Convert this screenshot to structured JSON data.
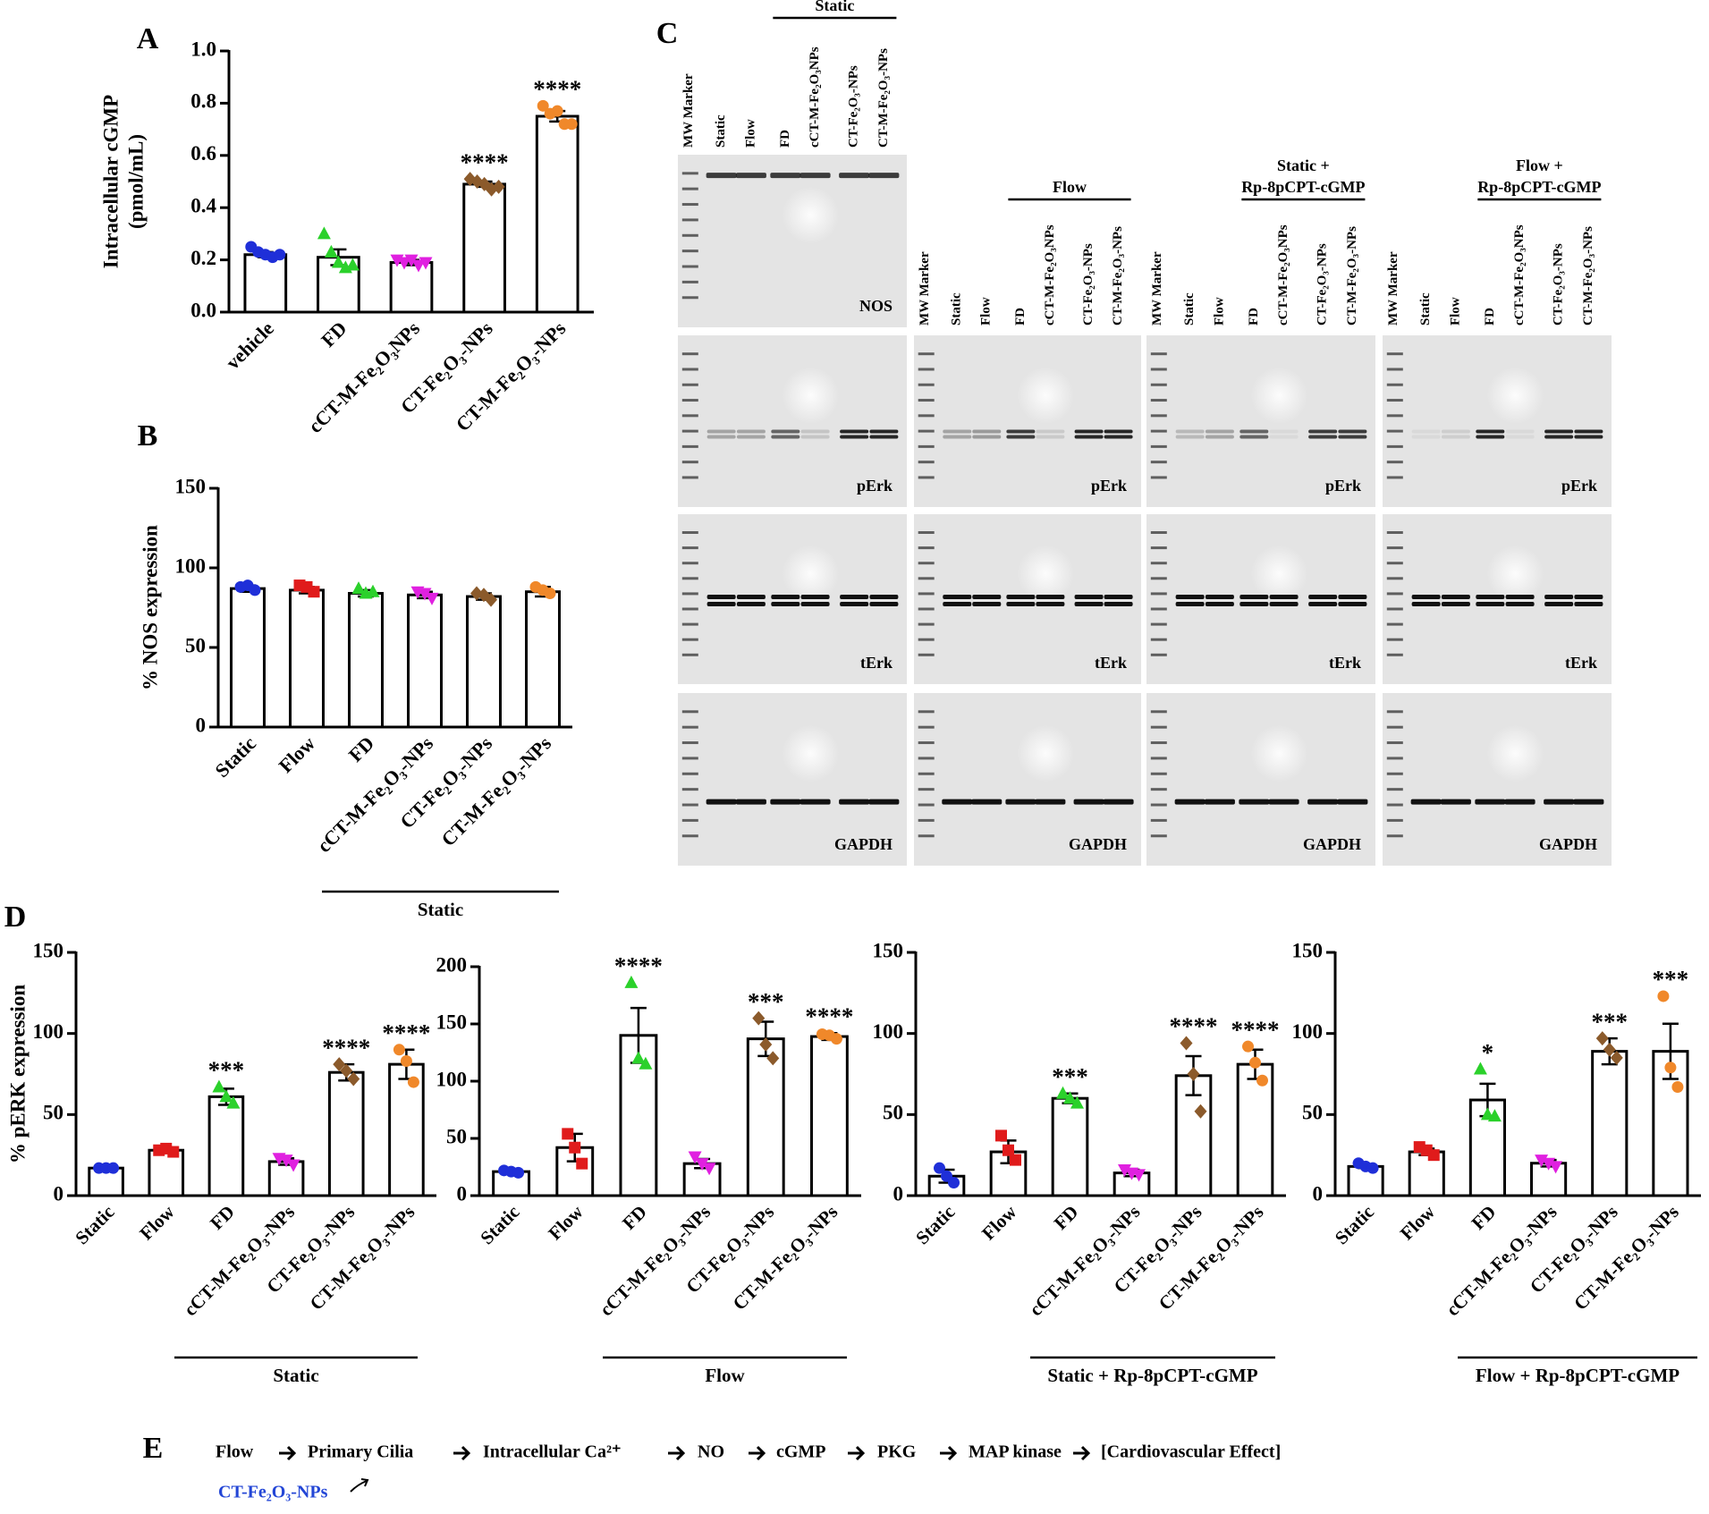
{
  "panel_labels": [
    "A",
    "B",
    "C",
    "D",
    "E"
  ],
  "chart_data": [
    {
      "type": "bar",
      "ylabel": [
        "Intracellular cGMP",
        "(pmol/mL)"
      ],
      "categories": [
        "vehicle",
        "FD",
        "cCT-M-Fe₂O₃NPs",
        "CT-Fe₂O₃-NPs",
        "CT-M-Fe₂O₃-NPs"
      ],
      "values": [
        0.22,
        0.21,
        0.19,
        0.49,
        0.75
      ],
      "errors": [
        0.01,
        0.03,
        0.01,
        0.01,
        0.02
      ],
      "points": [
        [
          0.25,
          0.23,
          0.22,
          0.21,
          0.22
        ],
        [
          0.3,
          0.23,
          0.19,
          0.17,
          0.18
        ],
        [
          0.2,
          0.19,
          0.2,
          0.18,
          0.19
        ],
        [
          0.51,
          0.5,
          0.49,
          0.47,
          0.48
        ],
        [
          0.79,
          0.76,
          0.77,
          0.72,
          0.72
        ]
      ],
      "point_colors": [
        "#1f2fd8",
        "#2bd12b",
        "#e020e0",
        "#8b5a2b",
        "#f0882a"
      ],
      "point_shapes": [
        "circle",
        "triangle",
        "triangle-down",
        "diamond",
        "circle"
      ],
      "annotations": [
        null,
        null,
        null,
        "****",
        "****"
      ],
      "ylim": [
        0,
        1
      ],
      "yticks": [
        {
          "value": 0,
          "label": "0.0"
        },
        0.2,
        0.4,
        0.6,
        0.8,
        {
          "value": 1,
          "label": "1.0"
        }
      ]
    },
    {
      "type": "bar",
      "ylabel": [
        "% NOS expression"
      ],
      "categories": [
        "Static",
        "Flow",
        "FD",
        "cCT-M-Fe₂O₃-NPs",
        "CT-Fe₂O₃-NPs",
        "CT-M-Fe₂O₃-NPs"
      ],
      "values": [
        87,
        86,
        84,
        83,
        82,
        85
      ],
      "errors": [
        2,
        2,
        2,
        2,
        2,
        3
      ],
      "points": [
        [
          88,
          89,
          86
        ],
        [
          89,
          88,
          85
        ],
        [
          87,
          84,
          85
        ],
        [
          85,
          84,
          81
        ],
        [
          84,
          83,
          80
        ],
        [
          88,
          86,
          84
        ]
      ],
      "point_colors": [
        "#1f2fd8",
        "#e01b1b",
        "#2bd12b",
        "#e020e0",
        "#8b5a2b",
        "#f0882a"
      ],
      "point_shapes": [
        "circle",
        "square",
        "triangle",
        "triangle-down",
        "diamond",
        "circle"
      ],
      "group_label": "Static",
      "ylim": [
        0,
        150
      ],
      "yticks": [
        0,
        50,
        100,
        150
      ]
    },
    {
      "type": "bar",
      "ylabel": [
        "% pERK expression"
      ],
      "categories": [
        "Static",
        "Flow",
        "FD",
        "cCT-M-Fe₂O₃-NPs",
        "CT-Fe₂O₃-NPs",
        "CT-M-Fe₂O₃-NPs"
      ],
      "values": [
        17,
        28,
        61,
        21,
        76,
        81
      ],
      "errors": [
        1,
        1,
        5,
        2,
        5,
        9
      ],
      "points": [
        [
          17,
          17,
          17
        ],
        [
          28,
          29,
          27
        ],
        [
          67,
          61,
          57
        ],
        [
          23,
          22,
          19
        ],
        [
          81,
          77,
          72
        ],
        [
          90,
          83,
          70
        ]
      ],
      "point_colors": [
        "#1f2fd8",
        "#e01b1b",
        "#2bd12b",
        "#e020e0",
        "#8b5a2b",
        "#f0882a"
      ],
      "point_shapes": [
        "circle",
        "square",
        "triangle",
        "triangle-down",
        "diamond",
        "circle"
      ],
      "annotations": [
        null,
        null,
        "***",
        null,
        "****",
        "****"
      ],
      "group_label": "Static",
      "ylim": [
        0,
        150
      ],
      "yticks": [
        0,
        50,
        100,
        150
      ]
    },
    {
      "type": "bar",
      "categories": [
        "Static",
        "Flow",
        "FD",
        "cCT-M-Fe₂O₃-NPs",
        "CT-Fe₂O₃-NPs",
        "CT-M-Fe₂O₃-NPs"
      ],
      "values": [
        21,
        42,
        140,
        28,
        137,
        139
      ],
      "errors": [
        2,
        12,
        24,
        4,
        15,
        3
      ],
      "points": [
        [
          22,
          21,
          20
        ],
        [
          54,
          42,
          28
        ],
        [
          186,
          120,
          115
        ],
        [
          34,
          28,
          24
        ],
        [
          155,
          132,
          120
        ],
        [
          141,
          140,
          137
        ]
      ],
      "point_colors": [
        "#1f2fd8",
        "#e01b1b",
        "#2bd12b",
        "#e020e0",
        "#8b5a2b",
        "#f0882a"
      ],
      "point_shapes": [
        "circle",
        "square",
        "triangle",
        "triangle-down",
        "diamond",
        "circle"
      ],
      "annotations": [
        null,
        null,
        "****",
        null,
        "***",
        "****"
      ],
      "group_label": "Flow",
      "ylim": [
        0,
        200
      ],
      "yticks": [
        0,
        50,
        100,
        150,
        200
      ]
    },
    {
      "type": "bar",
      "categories": [
        "Static",
        "Flow",
        "FD",
        "cCT-M-Fe₂O₃-NPs",
        "CT-Fe₂O₃-NPs",
        "CT-M-Fe₂O₃-NPs"
      ],
      "values": [
        12,
        27,
        60,
        14,
        74,
        81
      ],
      "errors": [
        4,
        7,
        3,
        2,
        12,
        9
      ],
      "points": [
        [
          17,
          12,
          8
        ],
        [
          37,
          28,
          22
        ],
        [
          63,
          60,
          57
        ],
        [
          16,
          14,
          13
        ],
        [
          94,
          75,
          52
        ],
        [
          92,
          82,
          71
        ]
      ],
      "point_colors": [
        "#1f2fd8",
        "#e01b1b",
        "#2bd12b",
        "#e020e0",
        "#8b5a2b",
        "#f0882a"
      ],
      "point_shapes": [
        "circle",
        "square",
        "triangle",
        "triangle-down",
        "diamond",
        "circle"
      ],
      "annotations": [
        null,
        null,
        "***",
        null,
        "****",
        "****"
      ],
      "group_label": "Static + Rp-8pCPT-cGMP",
      "ylim": [
        0,
        150
      ],
      "yticks": [
        0,
        50,
        100,
        150
      ]
    },
    {
      "type": "bar",
      "categories": [
        "Static",
        "Flow",
        "FD",
        "cCT-M-Fe₂O₃-NPs",
        "CT-Fe₂O₃-NPs",
        "CT-M-Fe₂O₃-NPs"
      ],
      "values": [
        18,
        27,
        59,
        20,
        89,
        89
      ],
      "errors": [
        1,
        2,
        10,
        2,
        8,
        17
      ],
      "points": [
        [
          20,
          18,
          17
        ],
        [
          30,
          28,
          25
        ],
        [
          78,
          50,
          49
        ],
        [
          22,
          20,
          18
        ],
        [
          97,
          90,
          85
        ],
        [
          123,
          79,
          67
        ]
      ],
      "point_colors": [
        "#1f2fd8",
        "#e01b1b",
        "#2bd12b",
        "#e020e0",
        "#8b5a2b",
        "#f0882a"
      ],
      "point_shapes": [
        "circle",
        "square",
        "triangle",
        "triangle-down",
        "diamond",
        "circle"
      ],
      "annotations": [
        null,
        null,
        "*",
        null,
        "***",
        "***"
      ],
      "group_label": "Flow + Rp-8pCPT-cGMP",
      "ylim": [
        0,
        150
      ],
      "yticks": [
        0,
        50,
        100,
        150
      ]
    }
  ],
  "blots": [
    {
      "header": [
        "Static"
      ],
      "lanes": [
        "MW Marker",
        "Static",
        "Flow",
        "FD",
        "cCT-M-Fe₂O₃NPs",
        "CT-Fe₂O₃-NPs",
        "CT-M-Fe₂O₃-NPs"
      ],
      "proteins": [
        "NOS",
        "pErk",
        "tErk",
        "GAPDH"
      ]
    },
    {
      "header": [
        "Flow"
      ],
      "lanes": [
        "MW Marker",
        "Static",
        "Flow",
        "FD",
        "cCT-M-Fe₂O₃NPs",
        "CT-Fe₂O₃-NPs",
        "CT-M-Fe₂O₃-NPs"
      ],
      "proteins": [
        "pErk",
        "tErk",
        "GAPDH"
      ]
    },
    {
      "header": [
        "Static +",
        "Rp-8pCPT-cGMP"
      ],
      "lanes": [
        "MW Marker",
        "Static",
        "Flow",
        "FD",
        "cCT-M-Fe₂O₃NPs",
        "CT-Fe₂O₃-NPs",
        "CT-M-Fe₂O₃-NPs"
      ],
      "proteins": [
        "pErk",
        "tErk",
        "GAPDH"
      ]
    },
    {
      "header": [
        "Flow +",
        "Rp-8pCPT-cGMP"
      ],
      "lanes": [
        "MW Marker",
        "Static",
        "Flow",
        "FD",
        "cCT-M-Fe₂O₃NPs",
        "CT-Fe₂O₃-NPs",
        "CT-M-Fe₂O₃-NPs"
      ],
      "proteins": [
        "pErk",
        "tErk",
        "GAPDH"
      ]
    }
  ],
  "pathway": {
    "steps": [
      "Flow",
      "Primary Cilia",
      "Intracellular Ca²⁺",
      "NO",
      "cGMP",
      "PKG",
      "MAP kinase",
      "[Cardiovascular Effect]"
    ],
    "agent": "CT-Fe₂O₃-NPs"
  }
}
